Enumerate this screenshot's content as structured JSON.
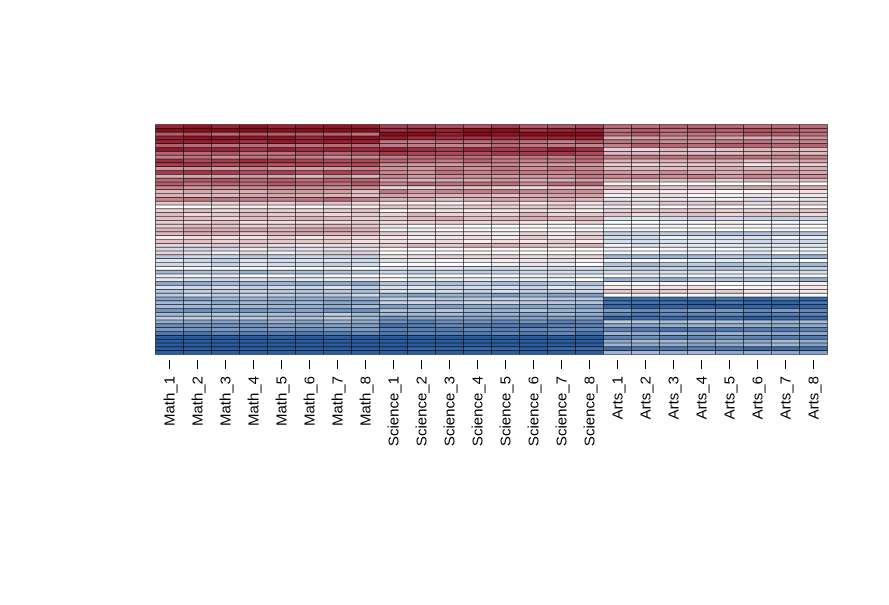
{
  "chart_data": {
    "type": "heatmap",
    "title": "",
    "xlabel": "",
    "ylabel": "",
    "columns": [
      "Math_1",
      "Math_2",
      "Math_3",
      "Math_4",
      "Math_5",
      "Math_6",
      "Math_7",
      "Math_8",
      "Science_1",
      "Science_2",
      "Science_3",
      "Science_4",
      "Science_5",
      "Science_6",
      "Science_7",
      "Science_8",
      "Arts_1",
      "Arts_2",
      "Arts_3",
      "Arts_4",
      "Arts_5",
      "Arts_6",
      "Arts_7",
      "Arts_8"
    ],
    "groups": [
      {
        "name": "Math",
        "columns": 8
      },
      {
        "name": "Science",
        "columns": 8
      },
      {
        "name": "Arts",
        "columns": 8
      }
    ],
    "rows": 60,
    "row_labels_shown": false,
    "value_range": [
      -1,
      1
    ],
    "color_scale": {
      "low": "#2b5d9e",
      "mid": "#ffffff",
      "high": "#8b0a1e"
    },
    "cell_border_color": "#000000",
    "gradient_note_values": "each column group scores from high (top) to low (bottom)"
  }
}
